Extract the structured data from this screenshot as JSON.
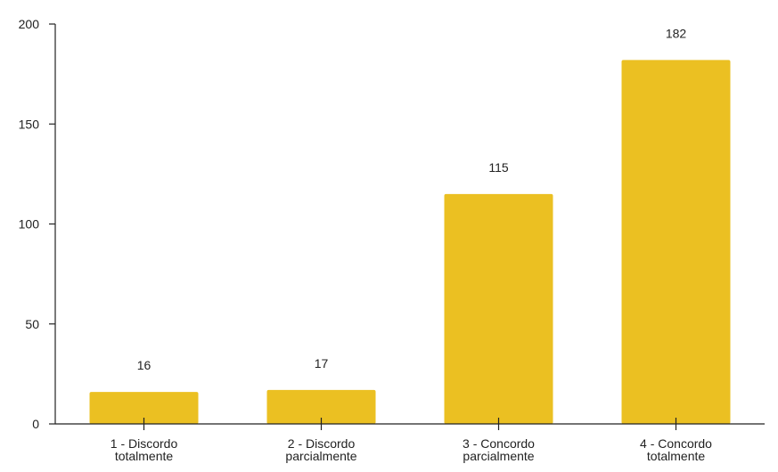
{
  "chart_data": {
    "type": "bar",
    "categories": [
      [
        "1 - Discordo",
        "totalmente"
      ],
      [
        "2 - Discordo",
        "parcialmente"
      ],
      [
        "3 - Concordo",
        "parcialmente"
      ],
      [
        "4 - Concordo",
        "totalmente"
      ]
    ],
    "values": [
      16,
      17,
      115,
      182
    ],
    "data_labels": [
      "16",
      "17",
      "115",
      "182"
    ],
    "y_ticks": [
      0,
      50,
      100,
      150,
      200
    ],
    "ylim": [
      0,
      200
    ],
    "grid": false,
    "colors": {
      "bar": "#ebc022",
      "axis": "#222222"
    }
  }
}
